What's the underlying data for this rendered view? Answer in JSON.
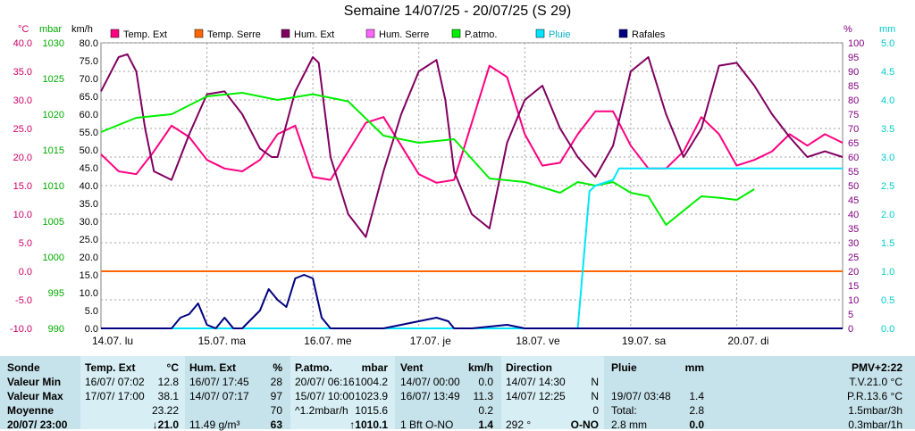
{
  "chart_data": {
    "type": "line",
    "title": "Semaine 14/07/25 - 20/07/25 (S 29)",
    "axes": {
      "temp": {
        "unit": "°C",
        "min": -10,
        "max": 40,
        "ticks": [
          "40.0",
          "35.0",
          "30.0",
          "25.0",
          "20.0",
          "15.0",
          "10.0",
          "5.0",
          "0.0",
          "-5.0",
          "-10.0"
        ],
        "color": "#cc0066"
      },
      "mbar": {
        "unit": "mbar",
        "min": 990,
        "max": 1030,
        "ticks": [
          "1030",
          "1025",
          "1020",
          "1015",
          "1010",
          "1005",
          "1000",
          "995",
          "990"
        ],
        "color": "#00aa00"
      },
      "kmh": {
        "unit": "km/h",
        "min": 0,
        "max": 80,
        "ticks": [
          "80.0",
          "75.0",
          "70.0",
          "65.0",
          "60.0",
          "55.0",
          "50.0",
          "45.0",
          "40.0",
          "35.0",
          "30.0",
          "25.0",
          "20.0",
          "15.0",
          "10.0",
          "5.0",
          "0.0"
        ],
        "color": "#000000"
      },
      "pct": {
        "unit": "%",
        "min": 0,
        "max": 100,
        "ticks": [
          "100",
          "95",
          "90",
          "85",
          "80",
          "75",
          "70",
          "65",
          "60",
          "55",
          "50",
          "45",
          "40",
          "35",
          "30",
          "25",
          "20",
          "15",
          "10",
          "5",
          "0"
        ],
        "color": "#800080"
      },
      "mm": {
        "unit": "mm",
        "min": 0,
        "max": 5,
        "ticks": [
          "5.0",
          "4.5",
          "4.0",
          "3.5",
          "3.0",
          "2.5",
          "2.0",
          "1.5",
          "1.0",
          "0.5",
          "0.0"
        ],
        "color": "#00cccc"
      }
    },
    "x_days": [
      "14.07. lu",
      "15.07. ma",
      "16.07. me",
      "17.07. je",
      "18.07. ve",
      "19.07. sa",
      "20.07. di"
    ],
    "legend": [
      {
        "name": "Temp. Ext",
        "color": "#ff0080"
      },
      {
        "name": "Temp. Serre",
        "color": "#ff6600"
      },
      {
        "name": "Hum. Ext",
        "color": "#800060"
      },
      {
        "name": "Hum. Serre",
        "color": "#ff66ff"
      },
      {
        "name": "P.atmo.",
        "color": "#00ee00"
      },
      {
        "name": "Pluie",
        "color": "#00e5ff"
      },
      {
        "name": "Rafales",
        "color": "#000080"
      }
    ],
    "series": [
      {
        "name": "Temp. Ext",
        "axis": "temp",
        "color": "#ff0080",
        "points": [
          [
            0,
            20.5
          ],
          [
            6,
            17.5
          ],
          [
            12,
            17
          ],
          [
            18,
            21
          ],
          [
            24,
            25.5
          ],
          [
            30,
            23.5
          ],
          [
            36,
            19.5
          ],
          [
            42,
            18
          ],
          [
            48,
            17.5
          ],
          [
            54,
            19.5
          ],
          [
            60,
            24
          ],
          [
            66,
            25.5
          ],
          [
            72,
            16.5
          ],
          [
            78,
            16
          ],
          [
            84,
            21
          ],
          [
            90,
            26
          ],
          [
            96,
            27
          ],
          [
            102,
            22
          ],
          [
            108,
            17
          ],
          [
            114,
            15.5
          ],
          [
            120,
            16
          ],
          [
            126,
            26
          ],
          [
            132,
            36
          ],
          [
            138,
            34
          ],
          [
            144,
            24
          ],
          [
            150,
            18.5
          ],
          [
            156,
            19
          ],
          [
            162,
            24
          ],
          [
            168,
            28
          ],
          [
            174,
            28
          ],
          [
            180,
            22
          ],
          [
            186,
            18
          ],
          [
            192,
            18
          ],
          [
            198,
            21
          ],
          [
            204,
            27
          ],
          [
            210,
            24
          ],
          [
            216,
            18.5
          ],
          [
            222,
            19.5
          ],
          [
            228,
            21
          ],
          [
            234,
            24
          ],
          [
            240,
            22
          ],
          [
            246,
            24
          ],
          [
            252,
            22.5
          ]
        ]
      },
      {
        "name": "Temp. Serre",
        "axis": "temp",
        "color": "#ff6600",
        "points": [
          [
            0,
            0
          ],
          [
            252,
            0
          ]
        ]
      },
      {
        "name": "Hum. Ext",
        "axis": "pct",
        "color": "#800060",
        "points": [
          [
            0,
            83
          ],
          [
            6,
            95
          ],
          [
            9,
            96
          ],
          [
            12,
            90
          ],
          [
            15,
            70
          ],
          [
            18,
            55
          ],
          [
            24,
            52
          ],
          [
            30,
            68
          ],
          [
            36,
            82
          ],
          [
            42,
            83
          ],
          [
            48,
            75
          ],
          [
            54,
            63
          ],
          [
            58,
            60
          ],
          [
            60,
            60
          ],
          [
            66,
            83
          ],
          [
            72,
            95
          ],
          [
            74,
            93
          ],
          [
            78,
            60
          ],
          [
            84,
            40
          ],
          [
            90,
            32
          ],
          [
            96,
            55
          ],
          [
            102,
            75
          ],
          [
            108,
            90
          ],
          [
            114,
            94
          ],
          [
            117,
            80
          ],
          [
            120,
            55
          ],
          [
            126,
            40
          ],
          [
            132,
            35
          ],
          [
            138,
            65
          ],
          [
            144,
            80
          ],
          [
            150,
            85
          ],
          [
            156,
            70
          ],
          [
            162,
            60
          ],
          [
            168,
            53
          ],
          [
            174,
            64
          ],
          [
            180,
            90
          ],
          [
            186,
            95
          ],
          [
            192,
            75
          ],
          [
            198,
            60
          ],
          [
            204,
            70
          ],
          [
            210,
            92
          ],
          [
            216,
            93
          ],
          [
            222,
            85
          ],
          [
            228,
            75
          ],
          [
            234,
            67
          ],
          [
            240,
            60
          ],
          [
            246,
            62
          ],
          [
            252,
            60
          ]
        ]
      },
      {
        "name": "P.atmo.",
        "axis": "mbar",
        "color": "#00ee00",
        "points": [
          [
            0,
            1017.5
          ],
          [
            12,
            1019.5
          ],
          [
            24,
            1020
          ],
          [
            36,
            1022.5
          ],
          [
            48,
            1023
          ],
          [
            60,
            1022
          ],
          [
            72,
            1022.8
          ],
          [
            84,
            1021.8
          ],
          [
            96,
            1017
          ],
          [
            108,
            1016
          ],
          [
            120,
            1016.5
          ],
          [
            132,
            1011
          ],
          [
            144,
            1010.5
          ],
          [
            156,
            1009
          ],
          [
            162,
            1010.5
          ],
          [
            168,
            1010
          ],
          [
            174,
            1010.5
          ],
          [
            180,
            1009
          ],
          [
            186,
            1008.5
          ],
          [
            192,
            1004.5
          ],
          [
            198,
            1006.5
          ],
          [
            204,
            1008.5
          ],
          [
            210,
            1008.3
          ],
          [
            216,
            1008
          ],
          [
            222,
            1009.5
          ]
        ]
      },
      {
        "name": "Pluie",
        "axis": "mm",
        "color": "#00e5ff",
        "points": [
          [
            0,
            0
          ],
          [
            162,
            0
          ],
          [
            166,
            2.4
          ],
          [
            168,
            2.5
          ],
          [
            174,
            2.6
          ],
          [
            176,
            2.8
          ],
          [
            252,
            2.8
          ]
        ]
      },
      {
        "name": "Rafales",
        "axis": "kmh",
        "color": "#000080",
        "points": [
          [
            0,
            0
          ],
          [
            24,
            0
          ],
          [
            27,
            3
          ],
          [
            30,
            4
          ],
          [
            33,
            7
          ],
          [
            36,
            1
          ],
          [
            39,
            0
          ],
          [
            42,
            3
          ],
          [
            45,
            0
          ],
          [
            48,
            0
          ],
          [
            54,
            5
          ],
          [
            57,
            11
          ],
          [
            60,
            8
          ],
          [
            63,
            6
          ],
          [
            66,
            14
          ],
          [
            69,
            15
          ],
          [
            72,
            14
          ],
          [
            75,
            3
          ],
          [
            78,
            0
          ],
          [
            84,
            0
          ],
          [
            90,
            0
          ],
          [
            96,
            0
          ],
          [
            114,
            3
          ],
          [
            118,
            2
          ],
          [
            120,
            0
          ],
          [
            126,
            0
          ],
          [
            138,
            1
          ],
          [
            144,
            0
          ],
          [
            156,
            0
          ],
          [
            168,
            0
          ],
          [
            180,
            0
          ],
          [
            192,
            0
          ],
          [
            204,
            0
          ],
          [
            216,
            0
          ],
          [
            228,
            0
          ],
          [
            240,
            0
          ],
          [
            246,
            0
          ],
          [
            252,
            0
          ]
        ]
      }
    ]
  },
  "stats": {
    "sonde": {
      "header": "Sonde",
      "rows": [
        "Valeur Min",
        "Valeur Max",
        "Moyenne",
        "20/07/ 23:00"
      ]
    },
    "temp": {
      "header": "Temp. Ext",
      "unit": "°C",
      "rows": [
        [
          "16/07/ 07:02",
          "12.8"
        ],
        [
          "17/07/ 17:00",
          "38.1"
        ],
        [
          "",
          "23.22"
        ],
        [
          "",
          "↓21.0"
        ]
      ]
    },
    "hum": {
      "header": "Hum. Ext",
      "unit": "%",
      "rows": [
        [
          "16/07/ 17:45",
          "28"
        ],
        [
          "14/07/ 07:17",
          "97"
        ],
        [
          "",
          "70"
        ],
        [
          "11.49 g/m³",
          "63"
        ]
      ]
    },
    "patmo": {
      "header": "P.atmo.",
      "unit": "mbar",
      "rows": [
        [
          "20/07/ 06:16",
          "1004.2"
        ],
        [
          "15/07/ 10:00",
          "1023.9"
        ],
        [
          "^1.2mbar/h",
          "1015.6"
        ],
        [
          "",
          "↑1010.1"
        ]
      ]
    },
    "vent": {
      "header": "Vent",
      "unit": "km/h",
      "rows": [
        [
          "14/07/ 00:00",
          "0.0"
        ],
        [
          "16/07/ 13:49",
          "11.3"
        ],
        [
          "",
          "0.2"
        ],
        [
          "1 Bft O-NO",
          "1.4"
        ]
      ]
    },
    "dir": {
      "header": "Direction",
      "rows": [
        [
          "14/07/ 14:30",
          "N"
        ],
        [
          "14/07/ 12:25",
          "N"
        ],
        [
          "",
          "0"
        ],
        [
          "292 °",
          "O-NO"
        ]
      ]
    },
    "pluie": {
      "header": "Pluie",
      "unit": "mm",
      "rows": [
        [
          "",
          ""
        ],
        [
          "19/07/ 03:48",
          "1.4"
        ],
        [
          "Total:",
          "2.8"
        ],
        [
          "2.8 mm",
          "0.0"
        ]
      ]
    },
    "pmv": {
      "header": "PMV+2:22",
      "rows": [
        "T.V.21.0 °C",
        "P.R.13.6 °C",
        "1.5mbar/3h",
        "0.3mbar/1h"
      ]
    }
  }
}
